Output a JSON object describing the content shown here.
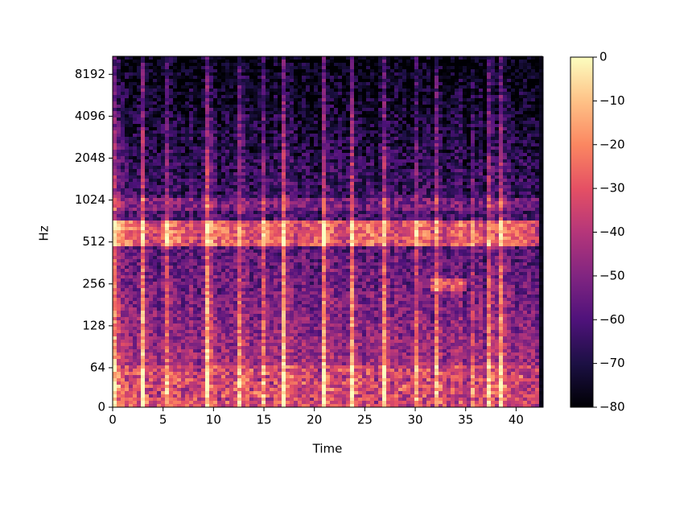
{
  "chart_data": {
    "type": "heatmap",
    "xlabel": "Time",
    "ylabel": "Hz",
    "xlim": [
      0,
      42.6
    ],
    "xticks": [
      0,
      5,
      10,
      15,
      20,
      25,
      30,
      35,
      40
    ],
    "ylim": [
      0,
      11025
    ],
    "yscale": "symlog",
    "linthresh": 64,
    "yticks": [
      0,
      64,
      128,
      256,
      512,
      1024,
      2048,
      4096,
      8192
    ],
    "colorbar": {
      "lim": [
        -80,
        0
      ],
      "ticks": [
        0,
        {
          "value": -10,
          "label": "−10"
        },
        {
          "value": -20,
          "label": "−20"
        },
        {
          "value": -30,
          "label": "−30"
        },
        {
          "value": -40,
          "label": "−40"
        },
        {
          "value": -50,
          "label": "−50"
        },
        {
          "value": -60,
          "label": "−60"
        },
        {
          "value": -70,
          "label": "−70"
        },
        {
          "value": -80,
          "label": "−80"
        }
      ],
      "colormap": [
        "#000004",
        "#1c1044",
        "#4f127b",
        "#812581",
        "#b5367a",
        "#e55064",
        "#fb8761",
        "#fec287",
        "#fcfdbf"
      ]
    }
  }
}
